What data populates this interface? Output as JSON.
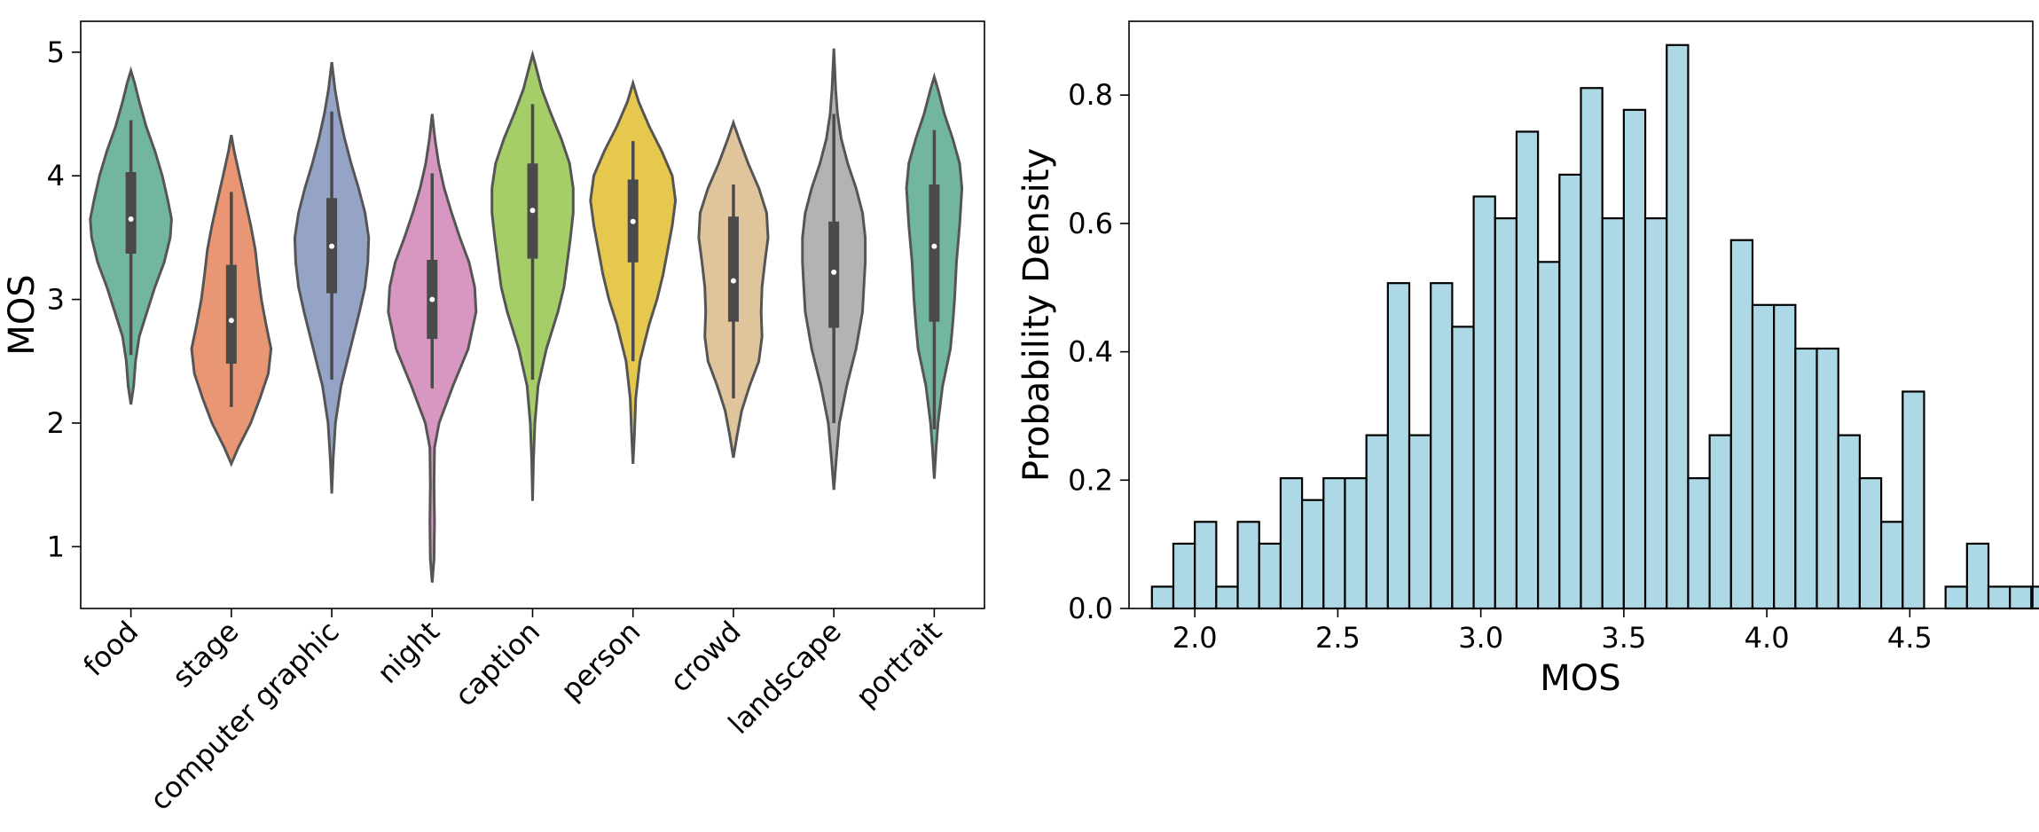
{
  "chart_data": [
    {
      "type": "violin",
      "ylabel": "MOS",
      "ylim": [
        0.5,
        5.25
      ],
      "yticks": [
        1,
        2,
        3,
        4,
        5
      ],
      "categories": [
        "food",
        "stage",
        "computer graphic",
        "night",
        "caption",
        "person",
        "crowd",
        "landscape",
        "portrait"
      ],
      "colors": [
        "#72b6a1",
        "#e99675",
        "#95a3c6",
        "#d897c0",
        "#a5cd68",
        "#e6c84f",
        "#dfc49c",
        "#b3b3b3",
        "#72b6a1"
      ],
      "violins": [
        {
          "category": "food",
          "min": 2.15,
          "max": 4.85,
          "whisker_low": 2.55,
          "whisker_high": 4.45,
          "q1": 3.37,
          "median": 3.65,
          "q3": 4.03,
          "profile": [
            [
              2.15,
              0.0
            ],
            [
              2.3,
              0.06
            ],
            [
              2.5,
              0.1
            ],
            [
              2.7,
              0.18
            ],
            [
              2.9,
              0.35
            ],
            [
              3.1,
              0.52
            ],
            [
              3.3,
              0.72
            ],
            [
              3.5,
              0.85
            ],
            [
              3.65,
              0.88
            ],
            [
              3.8,
              0.8
            ],
            [
              4.0,
              0.68
            ],
            [
              4.2,
              0.52
            ],
            [
              4.4,
              0.33
            ],
            [
              4.6,
              0.18
            ],
            [
              4.75,
              0.08
            ],
            [
              4.85,
              0.0
            ]
          ]
        },
        {
          "category": "stage",
          "min": 1.67,
          "max": 4.33,
          "whisker_low": 2.13,
          "whisker_high": 3.87,
          "q1": 2.48,
          "median": 2.83,
          "q3": 3.28,
          "profile": [
            [
              1.67,
              0.0
            ],
            [
              1.8,
              0.15
            ],
            [
              2.0,
              0.42
            ],
            [
              2.2,
              0.62
            ],
            [
              2.4,
              0.8
            ],
            [
              2.6,
              0.86
            ],
            [
              2.8,
              0.75
            ],
            [
              3.0,
              0.65
            ],
            [
              3.2,
              0.58
            ],
            [
              3.4,
              0.52
            ],
            [
              3.6,
              0.42
            ],
            [
              3.8,
              0.3
            ],
            [
              4.0,
              0.18
            ],
            [
              4.2,
              0.06
            ],
            [
              4.33,
              0.0
            ]
          ]
        },
        {
          "category": "computer graphic",
          "min": 1.43,
          "max": 4.92,
          "whisker_low": 2.35,
          "whisker_high": 4.52,
          "q1": 3.05,
          "median": 3.43,
          "q3": 3.82,
          "profile": [
            [
              1.43,
              0.0
            ],
            [
              1.7,
              0.03
            ],
            [
              2.0,
              0.08
            ],
            [
              2.3,
              0.2
            ],
            [
              2.6,
              0.4
            ],
            [
              2.9,
              0.6
            ],
            [
              3.1,
              0.72
            ],
            [
              3.3,
              0.78
            ],
            [
              3.5,
              0.8
            ],
            [
              3.7,
              0.72
            ],
            [
              3.9,
              0.58
            ],
            [
              4.1,
              0.42
            ],
            [
              4.3,
              0.28
            ],
            [
              4.5,
              0.16
            ],
            [
              4.7,
              0.07
            ],
            [
              4.92,
              0.0
            ]
          ]
        },
        {
          "category": "night",
          "min": 0.71,
          "max": 4.5,
          "whisker_low": 2.28,
          "whisker_high": 4.02,
          "q1": 2.68,
          "median": 3.0,
          "q3": 3.32,
          "profile": [
            [
              0.71,
              0.0
            ],
            [
              0.9,
              0.04
            ],
            [
              1.2,
              0.05
            ],
            [
              1.5,
              0.04
            ],
            [
              1.8,
              0.05
            ],
            [
              2.0,
              0.15
            ],
            [
              2.3,
              0.45
            ],
            [
              2.6,
              0.78
            ],
            [
              2.9,
              0.95
            ],
            [
              3.1,
              0.92
            ],
            [
              3.3,
              0.8
            ],
            [
              3.5,
              0.6
            ],
            [
              3.7,
              0.42
            ],
            [
              3.9,
              0.26
            ],
            [
              4.1,
              0.14
            ],
            [
              4.3,
              0.06
            ],
            [
              4.5,
              0.0
            ]
          ]
        },
        {
          "category": "caption",
          "min": 1.37,
          "max": 4.98,
          "whisker_low": 2.35,
          "whisker_high": 4.58,
          "q1": 3.33,
          "median": 3.72,
          "q3": 4.1,
          "profile": [
            [
              1.37,
              0.0
            ],
            [
              1.7,
              0.02
            ],
            [
              2.0,
              0.05
            ],
            [
              2.3,
              0.12
            ],
            [
              2.6,
              0.3
            ],
            [
              2.9,
              0.55
            ],
            [
              3.1,
              0.68
            ],
            [
              3.3,
              0.75
            ],
            [
              3.5,
              0.82
            ],
            [
              3.7,
              0.88
            ],
            [
              3.9,
              0.88
            ],
            [
              4.1,
              0.8
            ],
            [
              4.3,
              0.62
            ],
            [
              4.5,
              0.4
            ],
            [
              4.7,
              0.2
            ],
            [
              4.9,
              0.06
            ],
            [
              4.98,
              0.0
            ]
          ]
        },
        {
          "category": "person",
          "min": 1.67,
          "max": 4.75,
          "whisker_low": 2.5,
          "whisker_high": 4.28,
          "q1": 3.3,
          "median": 3.63,
          "q3": 3.97,
          "profile": [
            [
              1.67,
              0.0
            ],
            [
              1.9,
              0.03
            ],
            [
              2.2,
              0.06
            ],
            [
              2.5,
              0.15
            ],
            [
              2.8,
              0.35
            ],
            [
              3.0,
              0.52
            ],
            [
              3.2,
              0.65
            ],
            [
              3.4,
              0.75
            ],
            [
              3.6,
              0.85
            ],
            [
              3.8,
              0.92
            ],
            [
              4.0,
              0.85
            ],
            [
              4.2,
              0.62
            ],
            [
              4.4,
              0.35
            ],
            [
              4.6,
              0.12
            ],
            [
              4.75,
              0.0
            ]
          ]
        },
        {
          "category": "crowd",
          "min": 1.72,
          "max": 4.43,
          "whisker_low": 2.2,
          "whisker_high": 3.93,
          "q1": 2.82,
          "median": 3.15,
          "q3": 3.67,
          "profile": [
            [
              1.72,
              0.0
            ],
            [
              1.9,
              0.08
            ],
            [
              2.1,
              0.18
            ],
            [
              2.3,
              0.35
            ],
            [
              2.5,
              0.55
            ],
            [
              2.7,
              0.62
            ],
            [
              2.9,
              0.6
            ],
            [
              3.1,
              0.62
            ],
            [
              3.3,
              0.68
            ],
            [
              3.5,
              0.75
            ],
            [
              3.7,
              0.72
            ],
            [
              3.9,
              0.55
            ],
            [
              4.1,
              0.32
            ],
            [
              4.3,
              0.12
            ],
            [
              4.43,
              0.0
            ]
          ]
        },
        {
          "category": "landscape",
          "min": 1.46,
          "max": 5.03,
          "whisker_low": 2.0,
          "whisker_high": 4.5,
          "q1": 2.77,
          "median": 3.22,
          "q3": 3.63,
          "profile": [
            [
              1.46,
              0.0
            ],
            [
              1.7,
              0.05
            ],
            [
              2.0,
              0.12
            ],
            [
              2.3,
              0.28
            ],
            [
              2.6,
              0.48
            ],
            [
              2.9,
              0.62
            ],
            [
              3.1,
              0.65
            ],
            [
              3.3,
              0.68
            ],
            [
              3.5,
              0.68
            ],
            [
              3.7,
              0.62
            ],
            [
              3.9,
              0.48
            ],
            [
              4.1,
              0.3
            ],
            [
              4.3,
              0.16
            ],
            [
              4.5,
              0.08
            ],
            [
              4.7,
              0.04
            ],
            [
              5.03,
              0.0
            ]
          ]
        },
        {
          "category": "portrait",
          "min": 1.55,
          "max": 4.8,
          "whisker_low": 1.95,
          "whisker_high": 4.37,
          "q1": 2.82,
          "median": 3.43,
          "q3": 3.93,
          "profile": [
            [
              1.55,
              0.0
            ],
            [
              1.8,
              0.04
            ],
            [
              2.0,
              0.08
            ],
            [
              2.3,
              0.18
            ],
            [
              2.6,
              0.35
            ],
            [
              2.8,
              0.4
            ],
            [
              3.0,
              0.44
            ],
            [
              3.3,
              0.48
            ],
            [
              3.6,
              0.55
            ],
            [
              3.9,
              0.6
            ],
            [
              4.1,
              0.55
            ],
            [
              4.3,
              0.4
            ],
            [
              4.5,
              0.22
            ],
            [
              4.7,
              0.08
            ],
            [
              4.8,
              0.0
            ]
          ]
        }
      ]
    },
    {
      "type": "histogram",
      "xlabel": "MOS",
      "ylabel": "Probability Density",
      "xlim": [
        1.77,
        4.93
      ],
      "ylim": [
        0,
        0.915
      ],
      "xticks": [
        2.0,
        2.5,
        3.0,
        3.5,
        4.0,
        4.5
      ],
      "yticks": [
        0.0,
        0.2,
        0.4,
        0.6,
        0.8
      ],
      "bin_start": 1.85,
      "bin_width": 0.075,
      "densities": [
        0.034,
        0.101,
        0.135,
        0.034,
        0.135,
        0.101,
        0.203,
        0.169,
        0.203,
        0.203,
        0.27,
        0.507,
        0.27,
        0.507,
        0.439,
        0.642,
        0.608,
        0.743,
        0.54,
        0.676,
        0.811,
        0.608,
        0.777,
        0.608,
        0.878,
        0.203,
        0.27,
        0.574,
        0.473,
        0.473,
        0.405,
        0.405,
        0.27,
        0.203,
        0.135,
        0.338,
        0.0,
        0.034,
        0.101,
        0.034,
        0.034,
        0.034
      ]
    }
  ]
}
